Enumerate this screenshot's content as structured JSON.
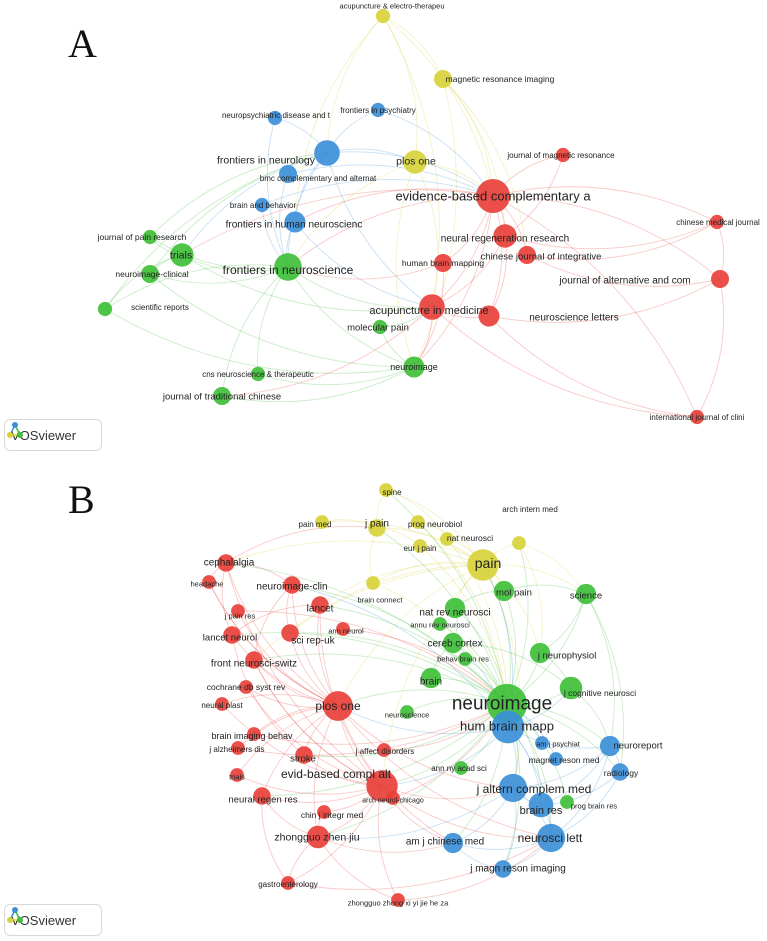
{
  "colors": {
    "red": "#e8403a",
    "green": "#3fbf3a",
    "blue": "#3c8fd8",
    "yellow": "#d8d23a"
  },
  "panelA": {
    "letter": "A",
    "badge_label": "VOSviewer",
    "nodes": [
      {
        "id": "a1",
        "label": "acupuncture & electro-therapeu",
        "cluster": "yellow",
        "w": 1
      },
      {
        "id": "a2",
        "label": "magnetic resonance imaging",
        "cluster": "yellow",
        "w": 2
      },
      {
        "id": "a3",
        "label": "neuropsychiatric disease and t",
        "cluster": "blue",
        "w": 1
      },
      {
        "id": "a4",
        "label": "frontiers in psychiatry",
        "cluster": "blue",
        "w": 1
      },
      {
        "id": "a5",
        "label": "frontiers in neurology",
        "cluster": "blue",
        "w": 5
      },
      {
        "id": "a6",
        "label": "plos one",
        "cluster": "yellow",
        "w": 4
      },
      {
        "id": "a7",
        "label": "bmc complementary and alternat",
        "cluster": "blue",
        "w": 2
      },
      {
        "id": "a8",
        "label": "journal of magnetic resonance",
        "cluster": "red",
        "w": 1
      },
      {
        "id": "a9",
        "label": "evidence-based complementary a",
        "cluster": "red",
        "w": 10
      },
      {
        "id": "a10",
        "label": "brain and behavior",
        "cluster": "blue",
        "w": 1
      },
      {
        "id": "a11",
        "label": "frontiers in human neuroscienc",
        "cluster": "blue",
        "w": 3
      },
      {
        "id": "a12",
        "label": "chinese medical journal",
        "cluster": "red",
        "w": 1
      },
      {
        "id": "a13",
        "label": "neural regeneration research",
        "cluster": "red",
        "w": 4
      },
      {
        "id": "a14",
        "label": "journal of pain research",
        "cluster": "green",
        "w": 1
      },
      {
        "id": "a15",
        "label": "trials",
        "cluster": "green",
        "w": 4
      },
      {
        "id": "a16",
        "label": "chinese journal of integrative",
        "cluster": "red",
        "w": 2
      },
      {
        "id": "a17",
        "label": "human brain mapping",
        "cluster": "red",
        "w": 2
      },
      {
        "id": "a18",
        "label": "frontiers in neuroscience",
        "cluster": "green",
        "w": 6
      },
      {
        "id": "a19",
        "label": "neuroimage-clinical",
        "cluster": "green",
        "w": 2
      },
      {
        "id": "a20",
        "label": "journal of alternative and com",
        "cluster": "red",
        "w": 2
      },
      {
        "id": "a21",
        "label": "scientific reports",
        "cluster": "green",
        "w": 1
      },
      {
        "id": "a22",
        "label": "acupuncture in medicine",
        "cluster": "red",
        "w": 5
      },
      {
        "id": "a23",
        "label": "neuroscience letters",
        "cluster": "red",
        "w": 3
      },
      {
        "id": "a24",
        "label": "molecular pain",
        "cluster": "green",
        "w": 1
      },
      {
        "id": "a25",
        "label": "neuroimage",
        "cluster": "green",
        "w": 3
      },
      {
        "id": "a26",
        "label": "cns neuroscience & therapeutic",
        "cluster": "green",
        "w": 1
      },
      {
        "id": "a27",
        "label": "journal of traditional chinese",
        "cluster": "green",
        "w": 2
      },
      {
        "id": "a28",
        "label": "international journal of clini",
        "cluster": "red",
        "w": 1
      }
    ]
  },
  "panelB": {
    "letter": "B",
    "badge_label": "VOSviewer",
    "nodes": [
      {
        "id": "b1",
        "label": "spine",
        "cluster": "yellow",
        "w": 1
      },
      {
        "id": "b2",
        "label": "arch intern med",
        "cluster": "yellow",
        "w": 1
      },
      {
        "id": "b3",
        "label": "pain med",
        "cluster": "yellow",
        "w": 1
      },
      {
        "id": "b4",
        "label": "j pain",
        "cluster": "yellow",
        "w": 2
      },
      {
        "id": "b5",
        "label": "prog neurobiol",
        "cluster": "yellow",
        "w": 1
      },
      {
        "id": "b6",
        "label": "nat neurosci",
        "cluster": "yellow",
        "w": 1
      },
      {
        "id": "b7",
        "label": "eur j pain",
        "cluster": "yellow",
        "w": 1
      },
      {
        "id": "b8",
        "label": "pain",
        "cluster": "yellow",
        "w": 9
      },
      {
        "id": "b9",
        "label": "cephalalgia",
        "cluster": "red",
        "w": 2
      },
      {
        "id": "b10",
        "label": "headache",
        "cluster": "red",
        "w": 1
      },
      {
        "id": "b11",
        "label": "neuroimage-clin",
        "cluster": "red",
        "w": 2
      },
      {
        "id": "b12",
        "label": "mol pain",
        "cluster": "green",
        "w": 3
      },
      {
        "id": "b13",
        "label": "brain connect",
        "cluster": "yellow",
        "w": 1
      },
      {
        "id": "b14",
        "label": "science",
        "cluster": "green",
        "w": 3
      },
      {
        "id": "b15",
        "label": "lancet",
        "cluster": "red",
        "w": 2
      },
      {
        "id": "b16",
        "label": "j pain res",
        "cluster": "red",
        "w": 1
      },
      {
        "id": "b17",
        "label": "annu rev neurosci",
        "cluster": "green",
        "w": 1
      },
      {
        "id": "b18",
        "label": "nat rev neurosci",
        "cluster": "green",
        "w": 3
      },
      {
        "id": "b19",
        "label": "lancet neurol",
        "cluster": "red",
        "w": 2
      },
      {
        "id": "b20",
        "label": "sci rep-uk",
        "cluster": "red",
        "w": 2
      },
      {
        "id": "b21",
        "label": "ann neurol",
        "cluster": "red",
        "w": 1
      },
      {
        "id": "b22",
        "label": "cereb cortex",
        "cluster": "green",
        "w": 3
      },
      {
        "id": "b23",
        "label": "j neurophysiol",
        "cluster": "green",
        "w": 3
      },
      {
        "id": "b24",
        "label": "front neurosci-switz",
        "cluster": "red",
        "w": 2
      },
      {
        "id": "b25",
        "label": "behav brain res",
        "cluster": "green",
        "w": 1
      },
      {
        "id": "b26",
        "label": "cochrane db syst rev",
        "cluster": "red",
        "w": 1
      },
      {
        "id": "b27",
        "label": "brain",
        "cluster": "green",
        "w": 3
      },
      {
        "id": "b28",
        "label": "neuroimage",
        "cluster": "green",
        "w": 16
      },
      {
        "id": "b29",
        "label": "j cognitive neurosci",
        "cluster": "green",
        "w": 4
      },
      {
        "id": "b30",
        "label": "neural plast",
        "cluster": "red",
        "w": 1
      },
      {
        "id": "b31",
        "label": "plos one",
        "cluster": "red",
        "w": 8
      },
      {
        "id": "b32",
        "label": "neuroscience",
        "cluster": "green",
        "w": 1
      },
      {
        "id": "b33",
        "label": "hum brain mapp",
        "cluster": "blue",
        "w": 10
      },
      {
        "id": "b34",
        "label": "brain imaging behav",
        "cluster": "red",
        "w": 1
      },
      {
        "id": "b35",
        "label": "am j psychiat",
        "cluster": "blue",
        "w": 1
      },
      {
        "id": "b36",
        "label": "neuroreport",
        "cluster": "blue",
        "w": 3
      },
      {
        "id": "b37",
        "label": "j alzheimers dis",
        "cluster": "red",
        "w": 1
      },
      {
        "id": "b38",
        "label": "j affect disorders",
        "cluster": "red",
        "w": 1
      },
      {
        "id": "b39",
        "label": "stroke",
        "cluster": "red",
        "w": 2
      },
      {
        "id": "b40",
        "label": "magnet reson med",
        "cluster": "blue",
        "w": 1
      },
      {
        "id": "b41",
        "label": "radiology",
        "cluster": "blue",
        "w": 2
      },
      {
        "id": "b42",
        "label": "trials",
        "cluster": "red",
        "w": 1
      },
      {
        "id": "b43",
        "label": "evid-based compl alt",
        "cluster": "red",
        "w": 9
      },
      {
        "id": "b44",
        "label": "ann ny acad sci",
        "cluster": "green",
        "w": 1
      },
      {
        "id": "b45",
        "label": "j altern complem med",
        "cluster": "blue",
        "w": 7
      },
      {
        "id": "b46",
        "label": "neural regen res",
        "cluster": "red",
        "w": 2
      },
      {
        "id": "b47",
        "label": "arch neurol-chicago",
        "cluster": "red",
        "w": 1
      },
      {
        "id": "b48",
        "label": "brain res",
        "cluster": "blue",
        "w": 5
      },
      {
        "id": "b49",
        "label": "prog brain res",
        "cluster": "green",
        "w": 1
      },
      {
        "id": "b50",
        "label": "chin j integr med",
        "cluster": "red",
        "w": 1
      },
      {
        "id": "b51",
        "label": "zhongguo zhen jiu",
        "cluster": "red",
        "w": 4
      },
      {
        "id": "b52",
        "label": "am j chinese med",
        "cluster": "blue",
        "w": 3
      },
      {
        "id": "b53",
        "label": "neurosci lett",
        "cluster": "blue",
        "w": 7
      },
      {
        "id": "b54",
        "label": "j magn reson imaging",
        "cluster": "blue",
        "w": 2
      },
      {
        "id": "b55",
        "label": "gastroenterology",
        "cluster": "red",
        "w": 1
      },
      {
        "id": "b56",
        "label": "zhongguo zhong xi yi jie he za",
        "cluster": "red",
        "w": 1
      }
    ]
  }
}
